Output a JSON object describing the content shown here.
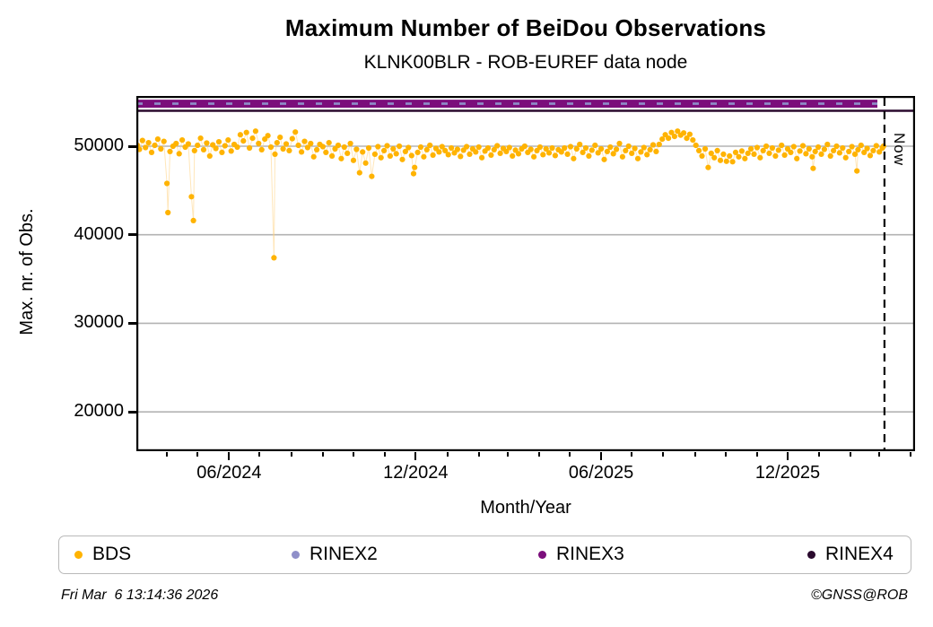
{
  "header": {
    "title": "Maximum Number of BeiDou Observations",
    "subtitle": "KLNK00BLR - ROB-EUREF data node"
  },
  "chart_data": {
    "type": "scatter",
    "title": "Maximum Number of BeiDou Observations",
    "subtitle": "KLNK00BLR - ROB-EUREF data node",
    "xlabel": "Month/Year",
    "ylabel": "Max. nr. of Obs.",
    "grid": "horizontal-only",
    "legend_position": "bottom",
    "x_axis": {
      "unit": "days since 2024-03-02",
      "range_days": [
        0,
        764
      ],
      "major_ticks": [
        {
          "day": 91,
          "label": "06/2024"
        },
        {
          "day": 274,
          "label": "12/2024"
        },
        {
          "day": 456,
          "label": "06/2025"
        },
        {
          "day": 639,
          "label": "12/2025"
        }
      ],
      "minor_tick_days": [
        30,
        60,
        121,
        152,
        183,
        213,
        244,
        305,
        336,
        364,
        395,
        425,
        486,
        517,
        548,
        578,
        609,
        670,
        701,
        729,
        760
      ]
    },
    "y_axis": {
      "ticks": [
        50000,
        40000,
        30000,
        20000
      ],
      "range": [
        15550,
        55670
      ],
      "gridline_color": "#b3b3b3"
    },
    "now_marker": {
      "day": 734,
      "label": "Now"
    },
    "series": [
      {
        "name": "BDS",
        "color": "#FFB300",
        "connector_color": "#FFD27F",
        "style": "points",
        "points": [
          [
            1,
            50100
          ],
          [
            3,
            49650
          ],
          [
            6,
            50650
          ],
          [
            9,
            49850
          ],
          [
            12,
            50400
          ],
          [
            15,
            49300
          ],
          [
            18,
            50100
          ],
          [
            21,
            50800
          ],
          [
            24,
            49700
          ],
          [
            27,
            50550
          ],
          [
            30,
            45800
          ],
          [
            31,
            42500
          ],
          [
            33,
            49400
          ],
          [
            36,
            50000
          ],
          [
            39,
            50300
          ],
          [
            42,
            49150
          ],
          [
            45,
            50700
          ],
          [
            48,
            49900
          ],
          [
            51,
            50250
          ],
          [
            54,
            44300
          ],
          [
            56,
            41600
          ],
          [
            57,
            49500
          ],
          [
            60,
            50100
          ],
          [
            63,
            50900
          ],
          [
            66,
            49600
          ],
          [
            69,
            50350
          ],
          [
            72,
            48900
          ],
          [
            75,
            50150
          ],
          [
            78,
            49750
          ],
          [
            81,
            50500
          ],
          [
            84,
            49300
          ],
          [
            87,
            50050
          ],
          [
            90,
            50700
          ],
          [
            93,
            49450
          ],
          [
            96,
            50200
          ],
          [
            99,
            49900
          ],
          [
            102,
            51300
          ],
          [
            105,
            50600
          ],
          [
            108,
            51550
          ],
          [
            111,
            49800
          ],
          [
            114,
            50900
          ],
          [
            117,
            51700
          ],
          [
            120,
            50300
          ],
          [
            123,
            49600
          ],
          [
            126,
            50800
          ],
          [
            129,
            51200
          ],
          [
            132,
            49900
          ],
          [
            135,
            37400
          ],
          [
            136,
            49100
          ],
          [
            138,
            50400
          ],
          [
            141,
            51000
          ],
          [
            144,
            49700
          ],
          [
            147,
            50250
          ],
          [
            150,
            49500
          ],
          [
            153,
            50850
          ],
          [
            156,
            51600
          ],
          [
            159,
            50100
          ],
          [
            162,
            49350
          ],
          [
            165,
            50550
          ],
          [
            168,
            49850
          ],
          [
            171,
            50300
          ],
          [
            174,
            48800
          ],
          [
            177,
            49600
          ],
          [
            180,
            50200
          ],
          [
            183,
            49950
          ],
          [
            186,
            49300
          ],
          [
            189,
            50400
          ],
          [
            192,
            48900
          ],
          [
            195,
            49700
          ],
          [
            198,
            50100
          ],
          [
            201,
            48600
          ],
          [
            204,
            49900
          ],
          [
            207,
            49200
          ],
          [
            210,
            50300
          ],
          [
            213,
            48400
          ],
          [
            216,
            49650
          ],
          [
            219,
            47000
          ],
          [
            222,
            49350
          ],
          [
            225,
            48100
          ],
          [
            228,
            49800
          ],
          [
            231,
            46600
          ],
          [
            234,
            49100
          ],
          [
            237,
            49950
          ],
          [
            240,
            48700
          ],
          [
            243,
            49500
          ],
          [
            246,
            50050
          ],
          [
            249,
            48900
          ],
          [
            252,
            49700
          ],
          [
            255,
            49150
          ],
          [
            258,
            50000
          ],
          [
            261,
            48500
          ],
          [
            264,
            49400
          ],
          [
            267,
            49850
          ],
          [
            270,
            48950
          ],
          [
            272,
            46900
          ],
          [
            273,
            47600
          ],
          [
            276,
            49300
          ],
          [
            279,
            49900
          ],
          [
            282,
            48800
          ],
          [
            285,
            49600
          ],
          [
            288,
            50100
          ],
          [
            291,
            49000
          ],
          [
            294,
            49750
          ],
          [
            297,
            49350
          ],
          [
            300,
            49950
          ],
          [
            303,
            49500
          ],
          [
            306,
            49050
          ],
          [
            309,
            49800
          ],
          [
            312,
            49250
          ],
          [
            315,
            49650
          ],
          [
            318,
            48850
          ],
          [
            321,
            49550
          ],
          [
            324,
            49950
          ],
          [
            327,
            49100
          ],
          [
            330,
            49700
          ],
          [
            333,
            49350
          ],
          [
            336,
            49900
          ],
          [
            339,
            48700
          ],
          [
            342,
            49450
          ],
          [
            345,
            49800
          ],
          [
            348,
            49000
          ],
          [
            351,
            49600
          ],
          [
            354,
            50050
          ],
          [
            357,
            49200
          ],
          [
            360,
            49750
          ],
          [
            363,
            49400
          ],
          [
            366,
            49850
          ],
          [
            369,
            48900
          ],
          [
            372,
            49550
          ],
          [
            375,
            49150
          ],
          [
            378,
            49700
          ],
          [
            381,
            50000
          ],
          [
            384,
            49300
          ],
          [
            387,
            49650
          ],
          [
            390,
            48800
          ],
          [
            393,
            49500
          ],
          [
            396,
            49900
          ],
          [
            399,
            49050
          ],
          [
            402,
            49700
          ],
          [
            405,
            49250
          ],
          [
            408,
            49800
          ],
          [
            411,
            48950
          ],
          [
            414,
            49600
          ],
          [
            417,
            49350
          ],
          [
            420,
            49800
          ],
          [
            423,
            49100
          ],
          [
            426,
            49950
          ],
          [
            429,
            48600
          ],
          [
            432,
            49700
          ],
          [
            435,
            50200
          ],
          [
            438,
            49300
          ],
          [
            441,
            49800
          ],
          [
            444,
            48900
          ],
          [
            447,
            49550
          ],
          [
            450,
            50100
          ],
          [
            453,
            49250
          ],
          [
            456,
            49700
          ],
          [
            459,
            48500
          ],
          [
            462,
            49400
          ],
          [
            465,
            49900
          ],
          [
            468,
            49150
          ],
          [
            471,
            49650
          ],
          [
            474,
            50300
          ],
          [
            477,
            48800
          ],
          [
            480,
            49500
          ],
          [
            483,
            50000
          ],
          [
            486,
            49200
          ],
          [
            489,
            49750
          ],
          [
            492,
            48600
          ],
          [
            495,
            49350
          ],
          [
            498,
            49850
          ],
          [
            501,
            49050
          ],
          [
            504,
            49600
          ],
          [
            507,
            50150
          ],
          [
            510,
            49400
          ],
          [
            513,
            50200
          ],
          [
            516,
            50800
          ],
          [
            519,
            51300
          ],
          [
            522,
            50900
          ],
          [
            525,
            51550
          ],
          [
            528,
            51100
          ],
          [
            531,
            51700
          ],
          [
            534,
            51250
          ],
          [
            537,
            51500
          ],
          [
            540,
            50900
          ],
          [
            543,
            51350
          ],
          [
            546,
            50700
          ],
          [
            549,
            50100
          ],
          [
            552,
            49500
          ],
          [
            555,
            48900
          ],
          [
            558,
            49700
          ],
          [
            561,
            47600
          ],
          [
            564,
            49200
          ],
          [
            567,
            48700
          ],
          [
            570,
            49500
          ],
          [
            573,
            48400
          ],
          [
            576,
            49100
          ],
          [
            579,
            48300
          ],
          [
            582,
            48900
          ],
          [
            585,
            48250
          ],
          [
            588,
            49300
          ],
          [
            591,
            48800
          ],
          [
            594,
            49450
          ],
          [
            597,
            48600
          ],
          [
            600,
            49200
          ],
          [
            603,
            49700
          ],
          [
            606,
            49100
          ],
          [
            609,
            49850
          ],
          [
            612,
            48700
          ],
          [
            615,
            49500
          ],
          [
            618,
            50000
          ],
          [
            621,
            49200
          ],
          [
            624,
            49800
          ],
          [
            627,
            48900
          ],
          [
            630,
            49550
          ],
          [
            633,
            50100
          ],
          [
            636,
            49000
          ],
          [
            639,
            49700
          ],
          [
            642,
            49300
          ],
          [
            645,
            49950
          ],
          [
            648,
            48600
          ],
          [
            651,
            49450
          ],
          [
            654,
            50050
          ],
          [
            657,
            49150
          ],
          [
            660,
            49700
          ],
          [
            663,
            48800
          ],
          [
            664,
            47500
          ],
          [
            666,
            49400
          ],
          [
            669,
            49900
          ],
          [
            672,
            49100
          ],
          [
            675,
            49650
          ],
          [
            678,
            50200
          ],
          [
            681,
            48900
          ],
          [
            684,
            49500
          ],
          [
            687,
            50000
          ],
          [
            690,
            49250
          ],
          [
            693,
            49800
          ],
          [
            696,
            48700
          ],
          [
            699,
            49400
          ],
          [
            702,
            49950
          ],
          [
            705,
            49100
          ],
          [
            707,
            47200
          ],
          [
            708,
            49600
          ],
          [
            711,
            50100
          ],
          [
            714,
            49300
          ],
          [
            717,
            49750
          ],
          [
            720,
            48950
          ],
          [
            723,
            49500
          ],
          [
            726,
            50050
          ],
          [
            729,
            49350
          ],
          [
            732,
            49800
          ],
          [
            733,
            50000
          ]
        ]
      },
      {
        "name": "RINEX2",
        "color": "#8F8FC9",
        "style": "dashed-overlay",
        "value": 54800,
        "day_range": [
          0,
          727
        ]
      },
      {
        "name": "RINEX3",
        "color": "#7B0E7B",
        "style": "thick-band",
        "value": 54800,
        "day_range": [
          0,
          727
        ]
      },
      {
        "name": "RINEX4",
        "color": "#2A0A2E",
        "style": "line",
        "value": 54000,
        "day_range": [
          0,
          764
        ]
      }
    ]
  },
  "axes_labels": {
    "x": "Month/Year",
    "y": "Max. nr. of Obs.",
    "now": "Now"
  },
  "legend": {
    "items": [
      {
        "label": "BDS",
        "color": "#FFB300"
      },
      {
        "label": "RINEX2",
        "color": "#8F8FC9"
      },
      {
        "label": "RINEX3",
        "color": "#7B0E7B"
      },
      {
        "label": "RINEX4",
        "color": "#2A0A2E"
      }
    ]
  },
  "footer": {
    "left": "Fri Mar  6 13:14:36 2026",
    "right": "©GNSS@ROB"
  }
}
